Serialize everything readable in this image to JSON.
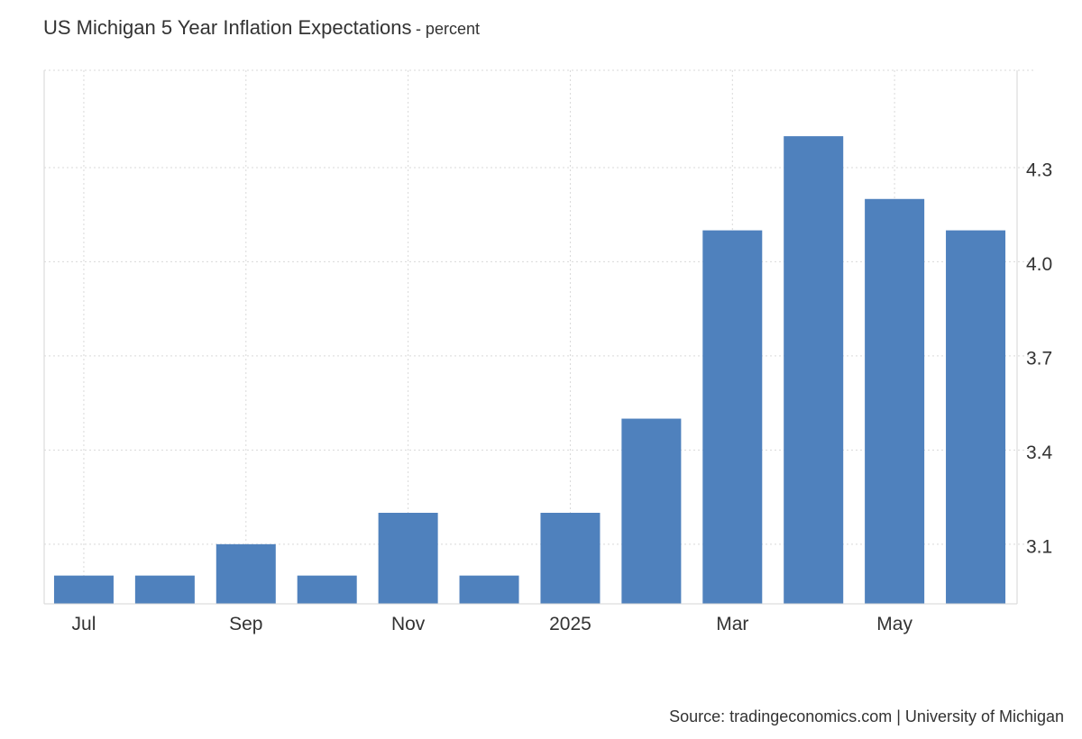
{
  "chart_data": {
    "type": "bar",
    "title": "US Michigan 5 Year Inflation Expectations",
    "subtitle": "- percent",
    "source": "Source: tradingeconomics.com | University of Michigan",
    "categories": [
      "Jul",
      "",
      "Sep",
      "",
      "Nov",
      "",
      "2025",
      "",
      "Mar",
      "",
      "May",
      ""
    ],
    "values": [
      3.0,
      3.0,
      3.1,
      3.0,
      3.2,
      3.0,
      3.2,
      3.5,
      4.1,
      4.4,
      4.2,
      4.1
    ],
    "yticks": [
      3.1,
      3.4,
      3.7,
      4.0,
      4.3
    ],
    "ylim": [
      2.91,
      4.61
    ],
    "grid": true,
    "y_axis_side": "right",
    "bar_color": "#4f81bd",
    "grid_color": "#d9d9d9"
  }
}
